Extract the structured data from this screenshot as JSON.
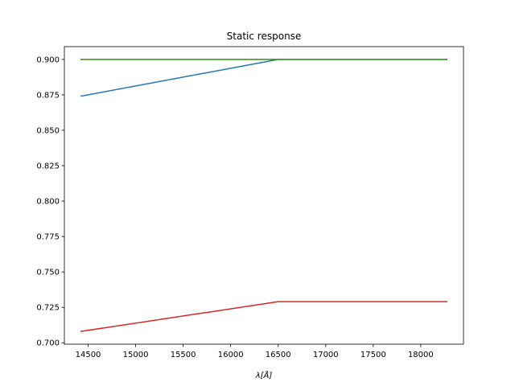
{
  "chart_data": {
    "type": "line",
    "title": "Static response",
    "xlabel": "λ[Å]",
    "ylabel": "",
    "xlim": [
      14250,
      18450
    ],
    "ylim": [
      0.699,
      0.909
    ],
    "xticks": [
      14500,
      15000,
      15500,
      16000,
      16500,
      17000,
      17500,
      18000
    ],
    "yticks": [
      0.7,
      0.725,
      0.75,
      0.775,
      0.8,
      0.825,
      0.85,
      0.875,
      0.9
    ],
    "ytick_labels": [
      "0.700",
      "0.725",
      "0.750",
      "0.775",
      "0.800",
      "0.825",
      "0.850",
      "0.875",
      "0.900"
    ],
    "grid": false,
    "legend": "none",
    "series": [
      {
        "color": "#1f77b4",
        "x": [
          14420,
          16500,
          18280
        ],
        "y": [
          0.874,
          0.9,
          0.9
        ]
      },
      {
        "color": "#ff7f0e",
        "x": [
          14420,
          16500,
          18280
        ],
        "y": [
          0.9,
          0.9,
          0.9
        ]
      },
      {
        "color": "#2ca02c",
        "x": [
          14420,
          16500,
          18280
        ],
        "y": [
          0.9,
          0.9,
          0.9
        ]
      },
      {
        "color": "#d62728",
        "x": [
          14420,
          16500,
          18280
        ],
        "y": [
          0.708,
          0.729,
          0.729
        ]
      }
    ]
  }
}
